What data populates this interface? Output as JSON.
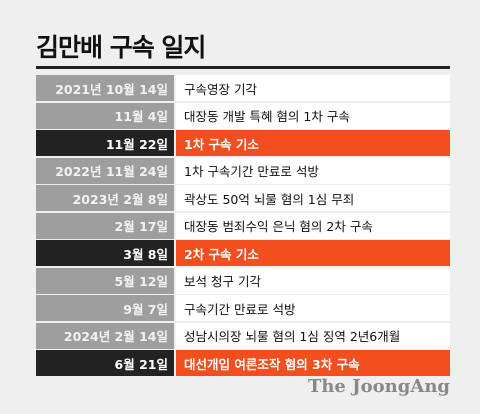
{
  "title": "김만배 구속 일지",
  "colors": {
    "date_bg": "#9e9e9e",
    "highlight_date_bg": "#222222",
    "highlight_event_bg": "#f24e1e",
    "event_bg": "#ffffff",
    "page_bg": "#efefef"
  },
  "rows": [
    {
      "date": "2021년 10월 14일",
      "event": "구속영장 기각",
      "highlight": false
    },
    {
      "date": "11월 4일",
      "event": "대장동 개발 특혜 혐의 1차 구속",
      "highlight": false
    },
    {
      "date": "11월 22일",
      "event": "1차 구속 기소",
      "highlight": true
    },
    {
      "date": "2022년 11월 24일",
      "event": "1차 구속기간 만료로 석방",
      "highlight": false
    },
    {
      "date": "2023년 2월 8일",
      "event": "곽상도 50억 뇌물 혐의 1심 무죄",
      "highlight": false
    },
    {
      "date": "2월 17일",
      "event": "대장동 범죄수익 은닉 혐의 2차 구속",
      "highlight": false
    },
    {
      "date": "3월 8일",
      "event": "2차 구속 기소",
      "highlight": true
    },
    {
      "date": "5월 12일",
      "event": "보석 청구 기각",
      "highlight": false
    },
    {
      "date": "9월 7일",
      "event": "구속기간 만료로 석방",
      "highlight": false
    },
    {
      "date": "2024년 2월 14일",
      "event": "성남시의장 뇌물 혐의 1심 징역 2년6개월",
      "highlight": false
    },
    {
      "date": "6월 21일",
      "event": "대선개입 여론조작 혐의 3차 구속",
      "highlight": true
    }
  ],
  "logo": "The JoongAng"
}
